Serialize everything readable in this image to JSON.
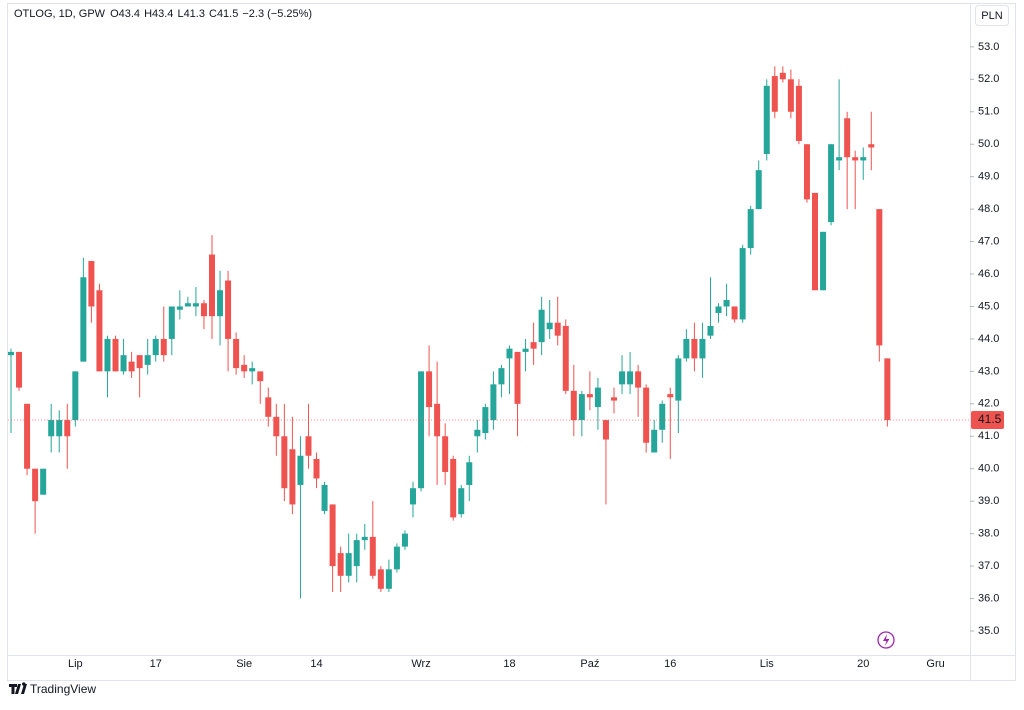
{
  "chart_data": {
    "type": "candlestick",
    "symbol": "OTLOG, 1D, GPW",
    "legend": [
      {
        "label": "O",
        "value": 43.4
      },
      {
        "label": "H",
        "value": 43.4
      },
      {
        "label": "L",
        "value": 41.3
      },
      {
        "label": "C",
        "value": 41.5
      }
    ],
    "change_label": "−2.3 (−5.25%)",
    "currency": "PLN",
    "brand": "TradingView",
    "up_color": "#26a69a",
    "down_color": "#ef5350",
    "grid": false,
    "ylim": [
      34.26,
      54.29
    ],
    "yticks": [
      {
        "value": 35,
        "label": "35.0"
      },
      {
        "value": 36,
        "label": "36.0"
      },
      {
        "value": 37,
        "label": "37.0"
      },
      {
        "value": 38,
        "label": "38.0"
      },
      {
        "value": 39,
        "label": "39.0"
      },
      {
        "value": 40,
        "label": "40.0"
      },
      {
        "value": 41,
        "label": "41.0"
      },
      {
        "value": 42,
        "label": "42.0"
      },
      {
        "value": 43,
        "label": "43.0"
      },
      {
        "value": 44,
        "label": "44.0"
      },
      {
        "value": 45,
        "label": "45.0"
      },
      {
        "value": 46,
        "label": "46.0"
      },
      {
        "value": 47,
        "label": "47.0"
      },
      {
        "value": 48,
        "label": "48.0"
      },
      {
        "value": 49,
        "label": "49.0"
      },
      {
        "value": 50,
        "label": "50.0"
      },
      {
        "value": 51,
        "label": "51.0"
      },
      {
        "value": 52,
        "label": "52.0"
      },
      {
        "value": 53,
        "label": "53.0"
      }
    ],
    "categories": [
      null,
      null,
      null,
      null,
      null,
      null,
      null,
      null,
      "Lip",
      null,
      null,
      null,
      null,
      null,
      null,
      null,
      null,
      null,
      "17",
      null,
      null,
      null,
      null,
      null,
      null,
      null,
      null,
      null,
      null,
      "Sie",
      null,
      null,
      null,
      null,
      null,
      null,
      null,
      null,
      "14",
      null,
      null,
      null,
      null,
      null,
      null,
      null,
      null,
      null,
      null,
      null,
      null,
      "Wrz",
      null,
      null,
      null,
      null,
      null,
      null,
      null,
      null,
      null,
      null,
      "18",
      null,
      null,
      null,
      null,
      null,
      null,
      null,
      null,
      null,
      "Paź",
      null,
      null,
      null,
      null,
      null,
      null,
      null,
      null,
      null,
      "16",
      null,
      null,
      null,
      null,
      null,
      null,
      null,
      null,
      null,
      null,
      null,
      "Lis",
      null,
      null,
      null,
      null,
      null,
      null,
      null,
      null,
      null,
      null,
      null,
      "20",
      null,
      null,
      null,
      null,
      null,
      null,
      null,
      null,
      "Gru"
    ],
    "open": [
      43.5,
      43.6,
      42.0,
      40.0,
      39.2,
      41.0,
      41.0,
      41.5,
      41.5,
      43.3,
      46.4,
      45.5,
      43.0,
      44.0,
      43.0,
      43.3,
      43.5,
      43.2,
      43.5,
      44.0,
      44.0,
      44.9,
      45.0,
      45.0,
      45.1,
      46.6,
      44.7,
      45.8,
      44.0,
      43.2,
      43.0,
      43.0,
      42.2,
      41.6,
      41.0,
      40.6,
      39.5,
      41.0,
      40.3,
      38.7,
      38.9,
      37.4,
      36.7,
      37.0,
      37.8,
      37.9,
      36.9,
      36.3,
      36.9,
      37.6,
      38.9,
      39.4,
      43.0,
      42.0,
      41.0,
      40.3,
      38.6,
      39.5,
      41.0,
      41.1,
      41.5,
      42.6,
      43.4,
      43.6,
      43.6,
      43.9,
      43.9,
      44.3,
      44.5,
      44.4,
      42.4,
      41.5,
      42.3,
      41.9,
      41.5,
      42.2,
      42.6,
      42.6,
      43.0,
      42.5,
      40.5,
      41.2,
      42.3,
      42.1,
      43.4,
      44.0,
      43.4,
      44.1,
      44.8,
      45.0,
      45.0,
      44.6,
      46.8,
      48.0,
      49.7,
      52.1,
      52.2,
      52.0,
      51.8,
      50.0,
      48.5,
      45.5,
      47.6,
      49.5,
      50.8,
      49.6,
      49.5,
      50.0,
      48.0,
      43.4,
      null,
      null,
      null,
      null,
      null,
      null
    ],
    "high": [
      43.7,
      43.6,
      42.0,
      40.0,
      40.0,
      42.0,
      41.8,
      42.0,
      43.0,
      46.5,
      46.4,
      45.7,
      44.1,
      44.1,
      44.0,
      43.6,
      43.5,
      44.0,
      44.1,
      45.0,
      45.0,
      45.5,
      45.3,
      45.6,
      45.2,
      47.2,
      46.1,
      46.1,
      44.2,
      43.5,
      43.3,
      43.0,
      42.5,
      42.0,
      42.0,
      41.6,
      41.0,
      42.0,
      40.5,
      39.6,
      38.9,
      37.6,
      38.0,
      38.0,
      38.3,
      39.0,
      37.0,
      37.2,
      37.7,
      38.1,
      39.6,
      43.0,
      43.8,
      43.3,
      41.4,
      40.4,
      39.5,
      40.4,
      41.5,
      42.0,
      43.0,
      43.2,
      43.8,
      43.6,
      44.0,
      44.5,
      45.3,
      45.2,
      45.3,
      44.6,
      43.2,
      42.4,
      43.0,
      42.8,
      41.5,
      42.5,
      43.5,
      43.6,
      43.2,
      42.6,
      41.5,
      42.1,
      42.5,
      43.5,
      44.3,
      44.5,
      44.5,
      45.9,
      45.1,
      45.7,
      45.0,
      46.9,
      48.1,
      49.5,
      52.0,
      52.4,
      52.4,
      52.3,
      52.0,
      50.0,
      48.5,
      47.3,
      50.0,
      52.0,
      51.0,
      49.8,
      49.9,
      51.0,
      48.0,
      43.4,
      null,
      null,
      null,
      null,
      null,
      null
    ],
    "low": [
      41.1,
      42.4,
      39.8,
      38.0,
      39.2,
      40.5,
      40.5,
      40.0,
      41.3,
      43.3,
      44.5,
      43.0,
      42.2,
      43.0,
      42.9,
      42.8,
      42.2,
      42.9,
      43.3,
      43.3,
      43.5,
      44.6,
      45.0,
      44.7,
      44.3,
      44.0,
      43.8,
      43.0,
      42.9,
      42.8,
      42.6,
      42.0,
      41.3,
      40.4,
      39.0,
      38.6,
      36.0,
      40.0,
      39.4,
      38.6,
      36.2,
      36.2,
      36.5,
      36.5,
      37.5,
      36.6,
      36.2,
      36.2,
      36.8,
      37.5,
      38.5,
      39.3,
      41.0,
      39.5,
      39.5,
      38.4,
      38.5,
      39.0,
      40.5,
      40.9,
      41.2,
      42.2,
      42.3,
      41.0,
      43.0,
      43.2,
      43.5,
      44.0,
      43.8,
      42.3,
      41.0,
      41.0,
      41.8,
      41.2,
      38.9,
      41.7,
      42.3,
      42.3,
      41.6,
      40.5,
      40.5,
      40.8,
      40.3,
      41.1,
      43.3,
      43.0,
      42.8,
      44.0,
      44.5,
      44.7,
      44.5,
      44.5,
      46.6,
      48.0,
      49.5,
      50.8,
      51.9,
      50.8,
      50.0,
      48.2,
      45.5,
      45.5,
      47.5,
      49.2,
      48.0,
      48.0,
      48.9,
      49.2,
      43.3,
      41.3,
      null,
      null,
      null,
      null,
      null,
      null
    ],
    "close": [
      43.6,
      42.5,
      40.0,
      39.0,
      40.0,
      41.5,
      41.5,
      41.0,
      43.0,
      45.9,
      45.0,
      43.0,
      44.0,
      43.0,
      43.5,
      43.0,
      43.1,
      43.5,
      44.0,
      43.5,
      45.0,
      45.0,
      45.1,
      45.1,
      44.7,
      44.7,
      45.5,
      44.0,
      43.1,
      43.0,
      43.1,
      42.7,
      41.6,
      41.0,
      39.4,
      38.9,
      40.4,
      40.4,
      39.7,
      39.5,
      37.0,
      36.7,
      37.4,
      37.8,
      37.9,
      36.7,
      36.3,
      36.9,
      37.6,
      38.0,
      39.4,
      43.0,
      41.9,
      41.0,
      39.9,
      38.5,
      39.4,
      40.2,
      41.2,
      41.9,
      42.6,
      43.1,
      43.7,
      42.0,
      43.7,
      43.7,
      44.9,
      44.5,
      44.1,
      42.4,
      41.5,
      42.3,
      42.2,
      42.5,
      40.9,
      42.1,
      43.0,
      43.0,
      42.5,
      40.8,
      41.2,
      42.0,
      42.2,
      43.4,
      44.0,
      43.4,
      44.0,
      44.4,
      45.0,
      45.2,
      44.6,
      46.8,
      48.0,
      49.2,
      51.8,
      51.0,
      52.0,
      51.0,
      50.1,
      48.3,
      45.5,
      47.3,
      50.0,
      49.6,
      49.6,
      49.5,
      49.6,
      49.9,
      43.8,
      41.5,
      null,
      null,
      null,
      null,
      null,
      null
    ]
  }
}
